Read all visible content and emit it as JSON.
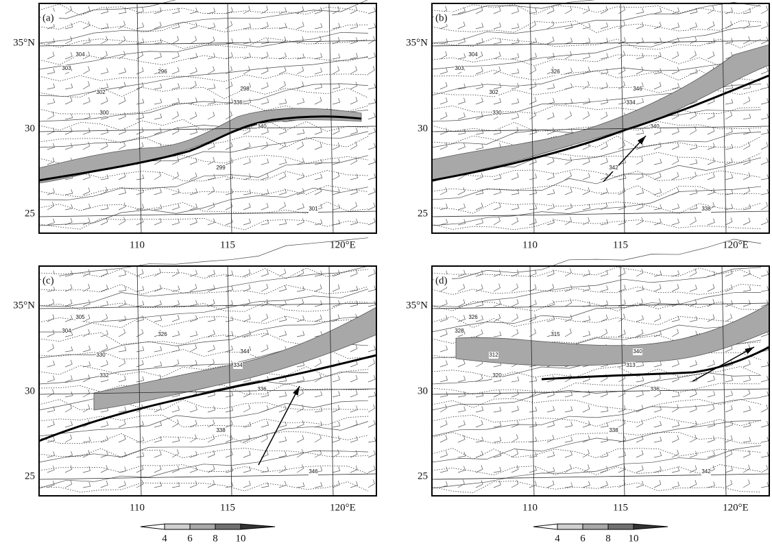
{
  "panels": [
    {
      "label": "(a)",
      "contour_labels": [
        "304",
        "303",
        "302",
        "300",
        "336",
        "340",
        "299",
        "298",
        "301",
        "296"
      ]
    },
    {
      "label": "(b)",
      "contour_labels": [
        "304",
        "303",
        "302",
        "330",
        "334",
        "340",
        "342",
        "346",
        "338",
        "326"
      ]
    },
    {
      "label": "(c)",
      "contour_labels": [
        "305",
        "304",
        "330",
        "332",
        "334",
        "336",
        "338",
        "344",
        "346",
        "326"
      ]
    },
    {
      "label": "(d)",
      "contour_labels": [
        "326",
        "328",
        "312",
        "320",
        "313",
        "336",
        "338",
        "340",
        "342",
        "315"
      ]
    }
  ],
  "x_ticks": [
    "110",
    "115",
    "120°E"
  ],
  "y_ticks": [
    "25",
    "30",
    "35°N"
  ],
  "colorbar_ticks": [
    "4",
    "6",
    "8",
    "10"
  ]
}
